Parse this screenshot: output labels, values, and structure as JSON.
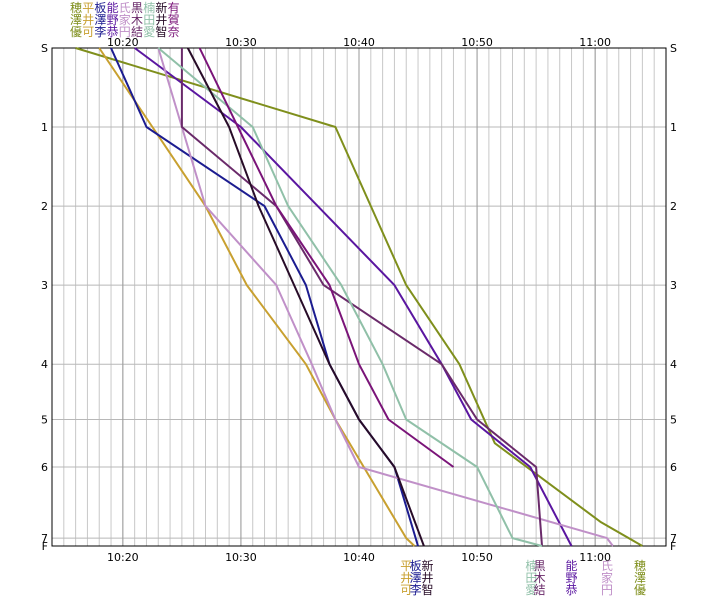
{
  "chart_data": {
    "type": "line",
    "title": "",
    "xlabel": "",
    "ylabel": "",
    "x_axis": {
      "unit": "time",
      "min": "10:14",
      "max": "11:06",
      "ticks": [
        "10:20",
        "10:30",
        "10:40",
        "10:50",
        "11:00"
      ]
    },
    "y_axis": {
      "ticks": [
        "S",
        "1",
        "2",
        "3",
        "4",
        "5",
        "6",
        "7",
        "F"
      ],
      "tick_distances": [
        0,
        1,
        2,
        3,
        4,
        4.7,
        5.3,
        6.2,
        6.3
      ],
      "inverted": true
    },
    "grid": true,
    "legend": "names stacked vertically above and below the plot",
    "series": [
      {
        "name_chars": [
          "穂",
          "澤",
          "優"
        ],
        "color": "#7f8f1c",
        "label_at": "top",
        "points": [
          [
            "10:16",
            0
          ],
          [
            "10:38",
            1
          ],
          [
            "10:44",
            3
          ],
          [
            "10:48.5",
            4
          ],
          [
            "10:51.5",
            5
          ],
          [
            "11:00.5",
            6
          ],
          [
            "11:04",
            6.3
          ]
        ]
      },
      {
        "name_chars": [
          "平",
          "井",
          "可"
        ],
        "color": "#c8a030",
        "label_at": "top",
        "points": [
          [
            "10:18",
            0
          ],
          [
            "10:22.5",
            1
          ],
          [
            "10:27",
            2
          ],
          [
            "10:30.5",
            3
          ],
          [
            "10:35.5",
            4
          ],
          [
            "10:38",
            4.7
          ],
          [
            "10:44",
            6.2
          ],
          [
            "10:44.7",
            6.3
          ]
        ]
      },
      {
        "name_chars": [
          "板",
          "澤",
          "李"
        ],
        "color": "#1c1c90",
        "label_at": "top",
        "points": [
          [
            "10:19",
            0
          ],
          [
            "10:22",
            1
          ],
          [
            "10:32",
            2
          ],
          [
            "10:35.5",
            3
          ],
          [
            "10:37.5",
            4
          ],
          [
            "10:40",
            4.7
          ],
          [
            "10:43",
            5.3
          ],
          [
            "10:45",
            6.3
          ]
        ]
      },
      {
        "name_chars": [
          "能",
          "野",
          "恭"
        ],
        "color": "#5a16a0",
        "label_at": "top",
        "points": [
          [
            "10:21",
            0
          ],
          [
            "10:30",
            1
          ],
          [
            "10:36.5",
            2
          ],
          [
            "10:43",
            3
          ],
          [
            "10:47",
            4
          ],
          [
            "10:49.5",
            4.7
          ],
          [
            "10:54.5",
            5.3
          ],
          [
            "10:58",
            6.3
          ]
        ]
      },
      {
        "name_chars": [
          "氏",
          "家",
          "円"
        ],
        "color": "#c090c8",
        "label_at": "top",
        "points": [
          [
            "10:23",
            0
          ],
          [
            "10:25",
            1
          ],
          [
            "10:27",
            2
          ],
          [
            "10:33",
            3
          ],
          [
            "10:36",
            4
          ],
          [
            "10:38",
            4.7
          ],
          [
            "10:40",
            5.3
          ],
          [
            "11:01",
            6.2
          ],
          [
            "11:01.5",
            6.3
          ]
        ]
      },
      {
        "name_chars": [
          "黒",
          "木",
          "結"
        ],
        "color": "#6a2a6a",
        "label_at": "top",
        "points": [
          [
            "10:25",
            0
          ],
          [
            "10:25",
            1
          ],
          [
            "10:33",
            2
          ],
          [
            "10:37",
            3
          ],
          [
            "10:47",
            4
          ],
          [
            "10:50",
            4.7
          ],
          [
            "10:55",
            5.3
          ],
          [
            "10:55.5",
            6.3
          ]
        ]
      },
      {
        "name_chars": [
          "楠",
          "田",
          "愛"
        ],
        "color": "#90c0a8",
        "label_at": "top",
        "points": [
          [
            "10:23",
            0
          ],
          [
            "10:31",
            1
          ],
          [
            "10:34",
            2
          ],
          [
            "10:38.5",
            3
          ],
          [
            "10:42",
            4
          ],
          [
            "10:44",
            4.7
          ],
          [
            "10:50",
            5.3
          ],
          [
            "10:53",
            6.2
          ],
          [
            "10:55.5",
            6.3
          ]
        ]
      },
      {
        "name_chars": [
          "新",
          "井",
          "智"
        ],
        "color": "#280c28",
        "label_at": "top",
        "points": [
          [
            "10:25.5",
            0
          ],
          [
            "10:29",
            1
          ],
          [
            "10:31.5",
            2
          ],
          [
            "10:34.5",
            3
          ],
          [
            "10:37.5",
            4
          ],
          [
            "10:40",
            4.7
          ],
          [
            "10:43",
            5.3
          ],
          [
            "10:45.5",
            6.3
          ]
        ]
      },
      {
        "name_chars": [
          "有",
          "賀",
          "奈"
        ],
        "color": "#7a1478",
        "label_at": "top",
        "points": [
          [
            "10:26.5",
            0
          ],
          [
            "10:33",
            2
          ],
          [
            "10:37.5",
            3
          ],
          [
            "10:40",
            4
          ],
          [
            "10:42.5",
            4.7
          ],
          [
            "10:48",
            5.3
          ]
        ]
      }
    ],
    "bottom_labels": [
      {
        "chars": [
          "平",
          "井",
          "可"
        ],
        "color": "#c8a030",
        "time": "10:44"
      },
      {
        "chars": [
          "板",
          "澤",
          "李"
        ],
        "color": "#1c1c90",
        "time": "10:44.8"
      },
      {
        "chars": [
          "新",
          "井",
          "智"
        ],
        "color": "#280c28",
        "time": "10:45.8"
      },
      {
        "chars": [
          "楠",
          "田",
          "愛"
        ],
        "color": "#90c0a8",
        "time": "10:54.6"
      },
      {
        "chars": [
          "黒",
          "木",
          "結"
        ],
        "color": "#6a2a6a",
        "time": "10:55.3"
      },
      {
        "chars": [
          "能",
          "野",
          "恭"
        ],
        "color": "#5a16a0",
        "time": "10:58"
      },
      {
        "chars": [
          "氏",
          "家",
          "円"
        ],
        "color": "#c090c8",
        "time": "11:01"
      },
      {
        "chars": [
          "穂",
          "澤",
          "優"
        ],
        "color": "#7f8f1c",
        "time": "11:03.8"
      }
    ]
  }
}
